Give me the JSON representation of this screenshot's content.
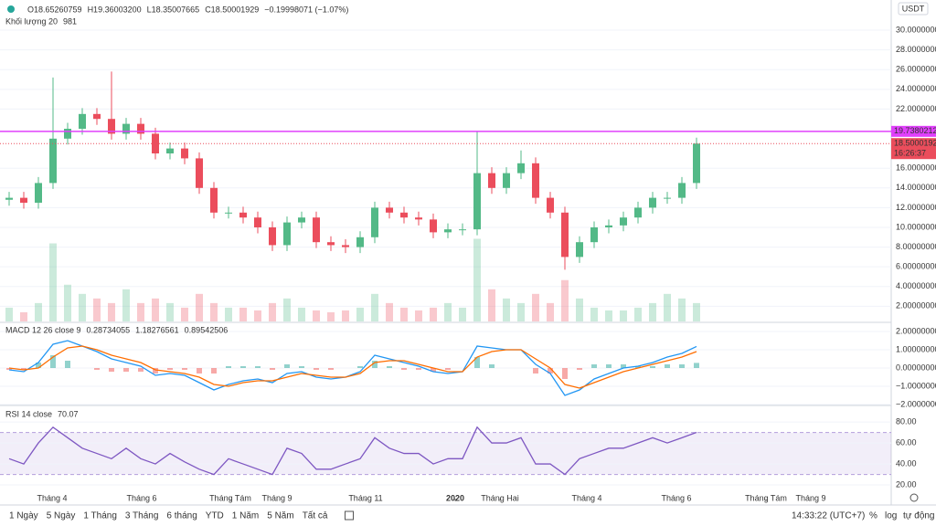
{
  "header": {
    "ohlc": [
      "O18.65260759",
      "H19.36003200",
      "L18.35007665",
      "C18.50001929",
      "−0.19998071 (−1.07%)"
    ],
    "volume_title": "Khối lượng 20",
    "volume_value": 981,
    "currency": "USDT",
    "time_left": "16:26:37"
  },
  "toolbar": {
    "ranges": [
      "1 Ngày",
      "5 Ngày",
      "1 Tháng",
      "3 Tháng",
      "6 tháng",
      "YTD",
      "1 Năm",
      "5 Năm",
      "Tất cả"
    ],
    "clock": "14:33:22 (UTC+7)",
    "percent": "%",
    "log": "log",
    "auto": "tự động"
  },
  "chart_data": [
    {
      "type": "candlestick",
      "up_color": "#53b987",
      "down_color": "#eb4d5c",
      "xlim": [
        -0.625,
        60.3125
      ],
      "ylim": [
        0.46,
        33.06
      ],
      "yticks": [
        {
          "value": 30,
          "label": "30.00000000"
        },
        {
          "value": 28,
          "label": "28.00000000"
        },
        {
          "value": 26,
          "label": "26.00000000"
        },
        {
          "value": 24,
          "label": "24.00000000"
        },
        {
          "value": 22,
          "label": "22.00000000"
        },
        {
          "value": 16,
          "label": "16.00000000"
        },
        {
          "value": 14,
          "label": "14.00000000"
        },
        {
          "value": 12,
          "label": "12.00000000"
        },
        {
          "value": 10,
          "label": "10.00000000"
        },
        {
          "value": 8,
          "label": "8.00000000"
        },
        {
          "value": 6,
          "label": "6.00000000"
        },
        {
          "value": 4,
          "label": "4.00000000"
        },
        {
          "value": 2,
          "label": "2.00000000"
        }
      ],
      "grid": true,
      "open": [
        12.8,
        13.0,
        12.5,
        14.5,
        19.0,
        20.0,
        21.5,
        21.0,
        19.5,
        20.5,
        19.5,
        17.5,
        18.0,
        17.0,
        14.0,
        11.5,
        11.5,
        11.0,
        10.0,
        8.2,
        10.5,
        11.0,
        8.5,
        8.2,
        8.0,
        9.0,
        12.0,
        11.5,
        11.0,
        10.8,
        9.5,
        9.8,
        9.8,
        15.5,
        14.0,
        15.5,
        16.5,
        13.0,
        11.5,
        7.0,
        8.5,
        10.0,
        10.2,
        11.0,
        12.0,
        13.0,
        13.0,
        14.5
      ],
      "high": [
        13.6,
        13.6,
        15.1,
        25.2,
        20.6,
        22.1,
        22.1,
        25.8,
        21.1,
        21.1,
        20.1,
        18.6,
        18.6,
        17.6,
        14.6,
        12.1,
        12.1,
        11.6,
        10.6,
        11.1,
        11.6,
        11.6,
        9.1,
        8.8,
        9.6,
        12.6,
        12.6,
        12.1,
        11.6,
        11.4,
        10.4,
        10.4,
        19.74,
        16.1,
        16.1,
        17.8,
        17.1,
        13.6,
        12.1,
        9.1,
        10.6,
        10.8,
        11.6,
        12.6,
        13.6,
        13.6,
        15.1,
        19.1
      ],
      "low": [
        12.2,
        11.9,
        11.9,
        13.9,
        18.4,
        19.4,
        20.4,
        18.9,
        18.9,
        18.9,
        16.9,
        16.9,
        16.4,
        13.4,
        10.9,
        10.9,
        10.4,
        9.4,
        7.6,
        7.6,
        9.9,
        7.9,
        7.6,
        7.4,
        7.4,
        8.4,
        10.9,
        10.4,
        10.2,
        8.9,
        8.9,
        9.2,
        9.2,
        13.4,
        13.4,
        14.9,
        12.4,
        10.9,
        5.7,
        6.4,
        7.9,
        9.4,
        9.6,
        10.4,
        11.4,
        12.4,
        12.4,
        13.9
      ],
      "close": [
        13.0,
        12.5,
        14.5,
        19.0,
        20.0,
        21.5,
        21.0,
        19.5,
        20.5,
        19.5,
        17.5,
        18.0,
        17.0,
        14.0,
        11.5,
        11.5,
        11.0,
        10.0,
        8.2,
        10.5,
        11.0,
        8.5,
        8.2,
        8.0,
        9.0,
        12.0,
        11.5,
        11.0,
        10.8,
        9.5,
        9.8,
        9.8,
        15.5,
        14.0,
        15.5,
        16.5,
        13.0,
        11.5,
        7.0,
        8.5,
        10.0,
        10.2,
        11.0,
        12.0,
        13.0,
        13.0,
        14.5,
        18.5
      ],
      "volume": [
        15,
        10,
        20,
        85,
        40,
        30,
        25,
        20,
        35,
        20,
        25,
        20,
        15,
        30,
        20,
        15,
        15,
        12,
        20,
        25,
        15,
        12,
        10,
        12,
        15,
        30,
        20,
        15,
        12,
        15,
        20,
        15,
        90,
        35,
        25,
        20,
        30,
        20,
        45,
        25,
        15,
        12,
        12,
        15,
        20,
        30,
        25,
        20
      ],
      "volume_ylim": [
        0,
        350
      ],
      "alert_line": {
        "value": 19.73802121,
        "color": "#e040fb"
      },
      "last_price": {
        "value": 18.50001929,
        "color": "#eb4d5c"
      }
    },
    {
      "type": "line",
      "title": "MACD 12 26 close 9",
      "legend_values": [
        0.28734055,
        1.18276561,
        0.89542506
      ],
      "xlim": [
        -0.625,
        60.3125
      ],
      "ylim": [
        -2,
        2.4
      ],
      "yticks": [
        {
          "value": 2,
          "label": "2.00000000"
        },
        {
          "value": 1,
          "label": "1.00000000"
        },
        {
          "value": 0,
          "label": "0.00000000"
        },
        {
          "value": -1,
          "label": "−1.00000000"
        },
        {
          "value": -2,
          "label": "−2.00000000"
        }
      ],
      "grid": true,
      "histogram": {
        "up_color": "#26a69a",
        "down_color": "#ef5350",
        "values": [
          -0.1,
          -0.1,
          0.3,
          0.7,
          0.4,
          0,
          -0.1,
          -0.2,
          -0.2,
          -0.2,
          -0.3,
          -0.1,
          -0.1,
          -0.3,
          -0.3,
          0.1,
          0.1,
          0.1,
          -0.1,
          0.2,
          0.1,
          -0.1,
          -0.1,
          0,
          0.1,
          0.4,
          0.1,
          -0.1,
          -0.1,
          -0.2,
          -0.1,
          0,
          0.6,
          0.2,
          0,
          0,
          -0.3,
          -0.3,
          -0.6,
          -0.1,
          0.2,
          0.2,
          0.2,
          0.1,
          0.1,
          0.2,
          0.2,
          0.28
        ]
      },
      "series": [
        {
          "color": "#2196f3",
          "values": [
            -0.1,
            -0.2,
            0.3,
            1.3,
            1.5,
            1.2,
            0.9,
            0.5,
            0.3,
            0.1,
            -0.4,
            -0.3,
            -0.4,
            -0.8,
            -1.2,
            -0.9,
            -0.7,
            -0.6,
            -0.8,
            -0.3,
            -0.2,
            -0.5,
            -0.6,
            -0.5,
            -0.2,
            0.7,
            0.5,
            0.3,
            0.1,
            -0.2,
            -0.3,
            -0.2,
            1.2,
            1.1,
            1.0,
            1.0,
            0.2,
            -0.3,
            -1.5,
            -1.2,
            -0.6,
            -0.3,
            0.0,
            0.1,
            0.3,
            0.6,
            0.8,
            1.18
          ]
        },
        {
          "color": "#ff6d00",
          "values": [
            0,
            -0.1,
            0,
            0.6,
            1.1,
            1.2,
            1.0,
            0.7,
            0.5,
            0.3,
            -0.1,
            -0.2,
            -0.3,
            -0.5,
            -0.9,
            -1.0,
            -0.8,
            -0.7,
            -0.7,
            -0.5,
            -0.3,
            -0.4,
            -0.5,
            -0.5,
            -0.3,
            0.3,
            0.4,
            0.4,
            0.2,
            0,
            -0.2,
            -0.2,
            0.6,
            0.9,
            1.0,
            1.0,
            0.5,
            0,
            -0.9,
            -1.1,
            -0.8,
            -0.5,
            -0.2,
            0,
            0.2,
            0.4,
            0.6,
            0.9
          ]
        }
      ]
    },
    {
      "type": "line",
      "title": "RSI 14 close",
      "legend_values": [
        70.07
      ],
      "xlim": [
        -0.625,
        60.3125
      ],
      "ylim": [
        7,
        94
      ],
      "yticks": [
        {
          "value": 80,
          "label": "80.00"
        },
        {
          "value": 60,
          "label": "60.00"
        },
        {
          "value": 40,
          "label": "40.00"
        },
        {
          "value": 20,
          "label": "20.00"
        }
      ],
      "grid": true,
      "band": [
        30,
        70
      ],
      "series": [
        {
          "color": "#7e57c2",
          "values": [
            45,
            40,
            60,
            75,
            65,
            55,
            50,
            45,
            55,
            45,
            40,
            50,
            42,
            35,
            30,
            45,
            40,
            35,
            30,
            55,
            50,
            35,
            35,
            40,
            45,
            65,
            55,
            50,
            50,
            40,
            45,
            45,
            75,
            60,
            60,
            65,
            40,
            40,
            30,
            45,
            50,
            55,
            55,
            60,
            65,
            60,
            65,
            70.07
          ]
        }
      ],
      "xticks": [
        {
          "value": 2.9375,
          "label": "Tháng 4"
        },
        {
          "value": 9.0625,
          "label": "Tháng 6"
        },
        {
          "value": 15.125,
          "label": "Tháng Tám"
        },
        {
          "value": 18.3125,
          "label": "Tháng 9"
        },
        {
          "value": 24.375,
          "label": "Tháng 11"
        },
        {
          "value": 30.5,
          "label": "2020"
        },
        {
          "value": 33.5625,
          "label": "Tháng Hai"
        },
        {
          "value": 39.5,
          "label": "Tháng 4"
        },
        {
          "value": 45.625,
          "label": "Tháng 6"
        },
        {
          "value": 51.75,
          "label": "Tháng Tám"
        },
        {
          "value": 54.8125,
          "label": "Tháng 9"
        }
      ]
    }
  ]
}
